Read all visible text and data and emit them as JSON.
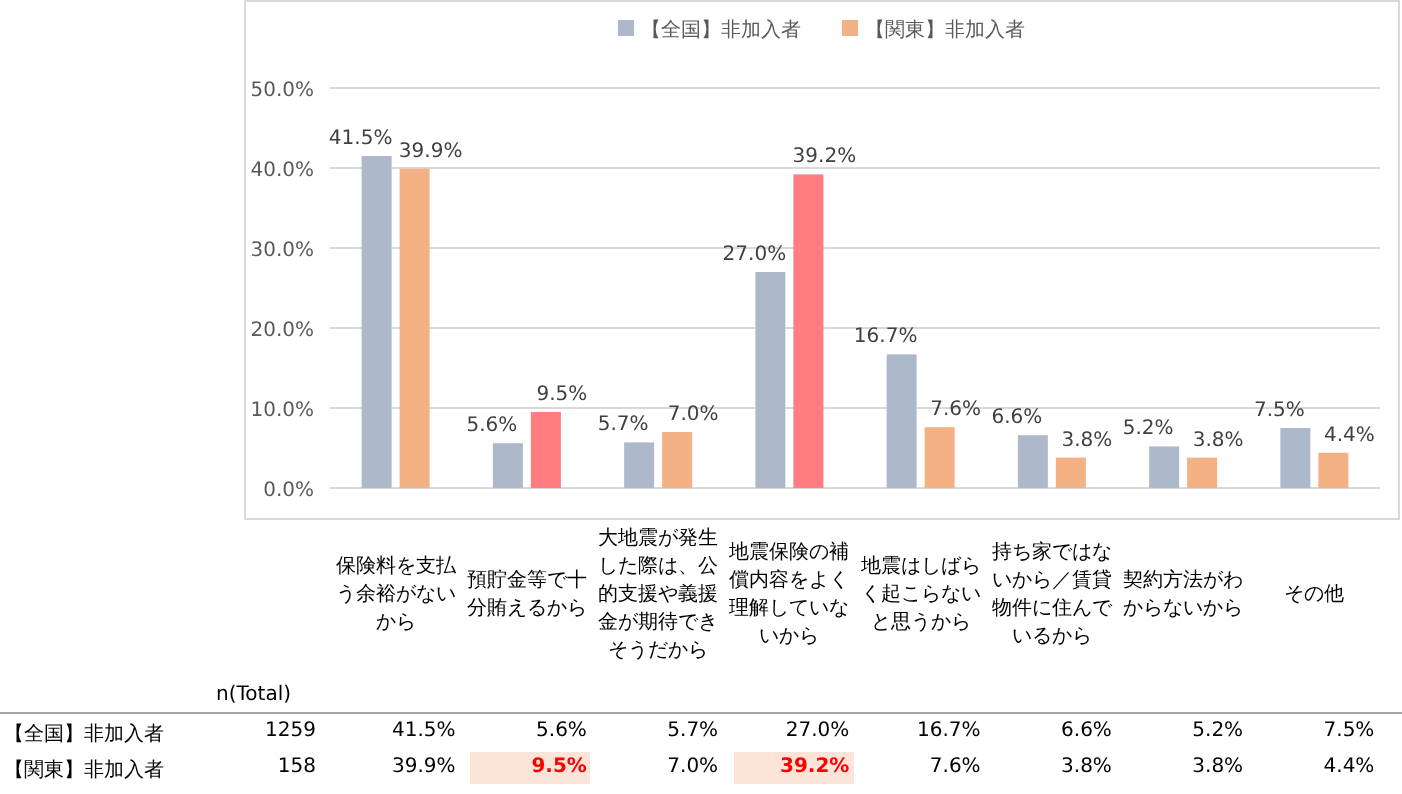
{
  "chart_data": {
    "type": "bar",
    "categories": [
      "保険料を支払う余裕がないから",
      "預貯金等で十分賄えるから",
      "大地震が発生した際は、公的支援や義援金が期待できそうだから",
      "地震保険の補償内容をよく理解していないから",
      "地震はしばらく起こらないと思うから",
      "持ち家ではないから／賃貸物件に住んでいるから",
      "契約方法がわからないから",
      "その他"
    ],
    "series": [
      {
        "name": "【全国】非加入者",
        "color": "#adb9ca",
        "values": [
          41.5,
          5.6,
          5.7,
          27.0,
          16.7,
          6.6,
          5.2,
          7.5
        ],
        "value_labels": [
          "41.5%",
          "5.6%",
          "5.7%",
          "27.0%",
          "16.7%",
          "6.6%",
          "5.2%",
          "7.5%"
        ]
      },
      {
        "name": "【関東】非加入者",
        "color": "#f4b183",
        "colors": [
          "#f4b183",
          "#ff7c80",
          "#f4b183",
          "#ff7c80",
          "#f4b183",
          "#f4b183",
          "#f4b183",
          "#f4b183"
        ],
        "values": [
          39.9,
          9.5,
          7.0,
          39.2,
          7.6,
          3.8,
          3.8,
          4.4
        ],
        "value_labels": [
          "39.9%",
          "9.5%",
          "7.0%",
          "39.2%",
          "7.6%",
          "3.8%",
          "3.8%",
          "4.4%"
        ]
      }
    ],
    "ylim": [
      0,
      50
    ],
    "yticks": [
      {
        "value": 0,
        "label": "0.0%"
      },
      {
        "value": 10,
        "label": "10.0%"
      },
      {
        "value": 20,
        "label": "20.0%"
      },
      {
        "value": 30,
        "label": "30.0%"
      },
      {
        "value": 40,
        "label": "40.0%"
      },
      {
        "value": 50,
        "label": "50.0%"
      }
    ],
    "grid": "y",
    "legend": "top",
    "annotations": [
      "n(Total)",
      "1259",
      "158"
    ]
  }
}
